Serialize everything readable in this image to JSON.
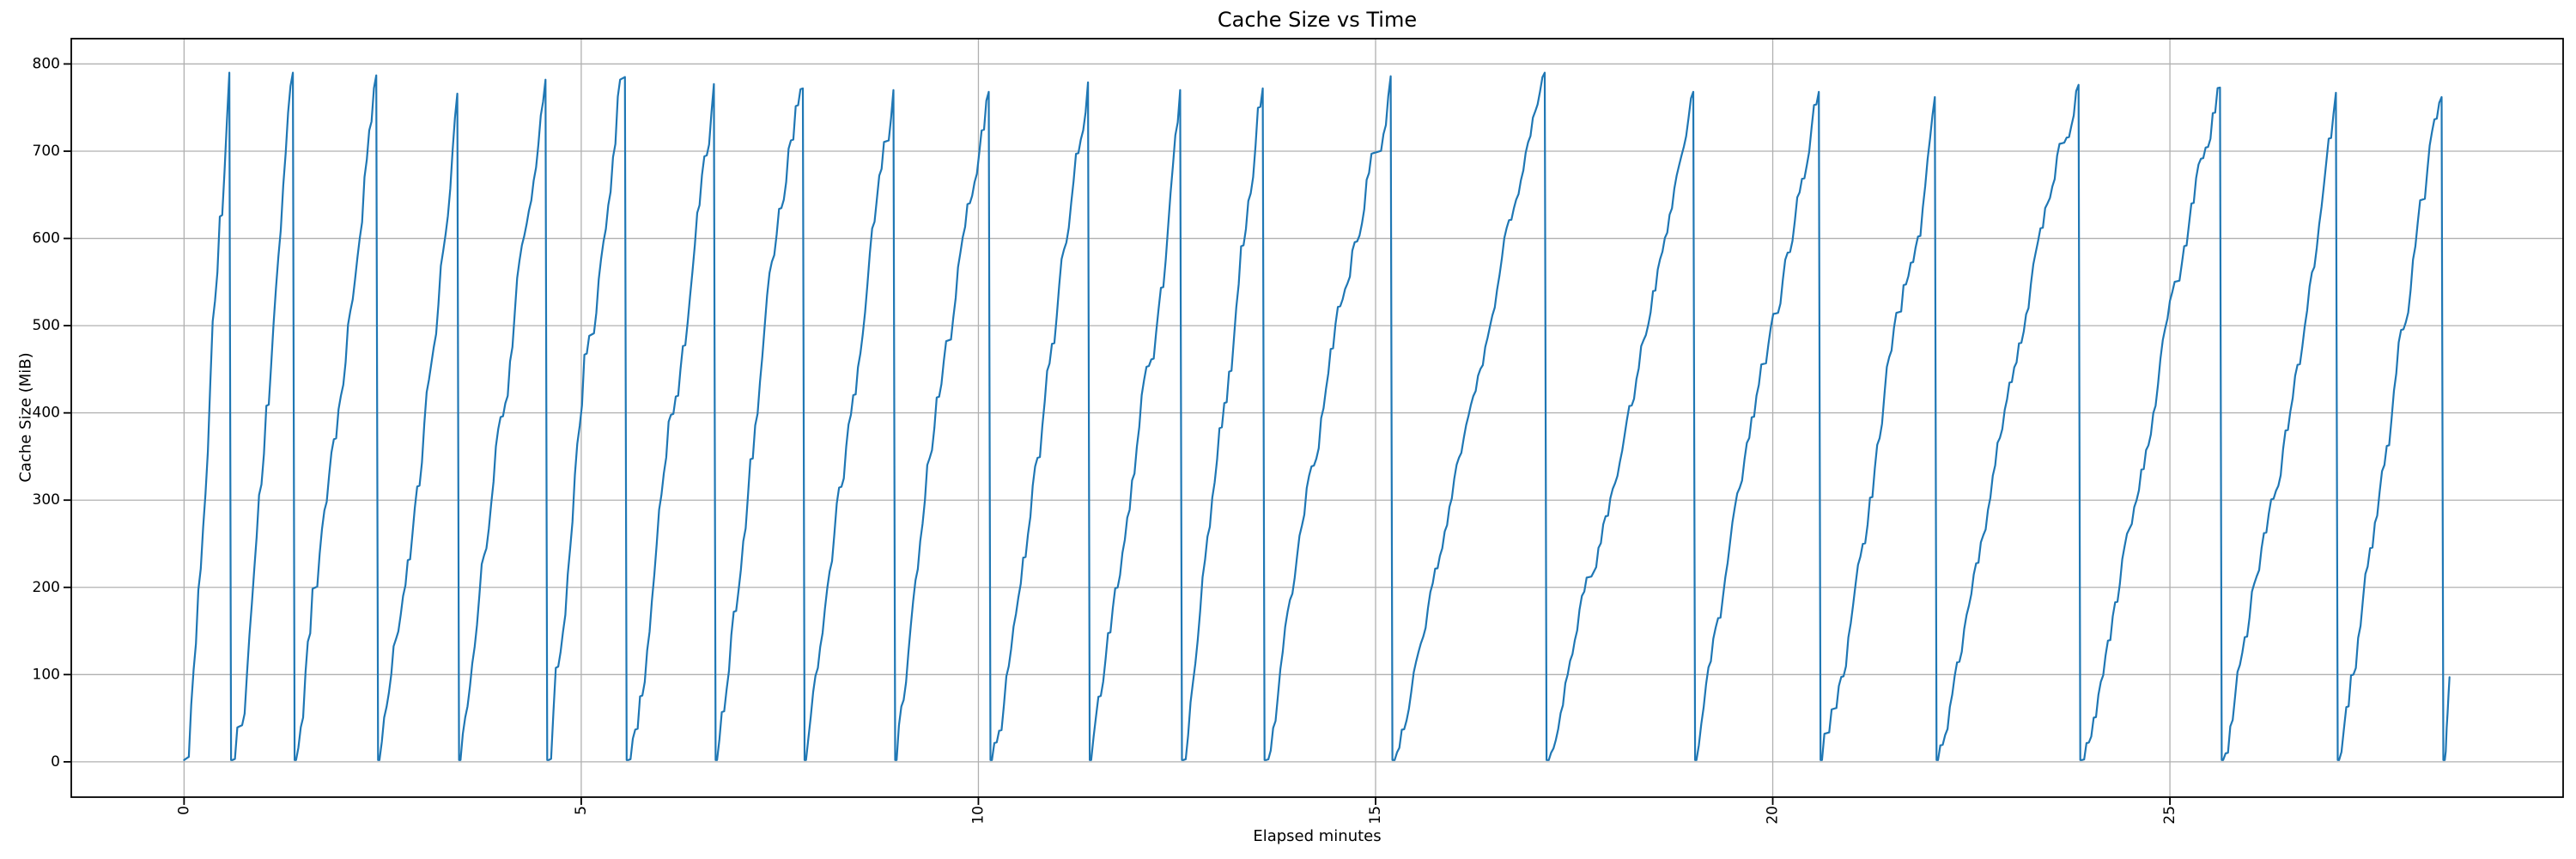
{
  "chart_data": {
    "type": "line",
    "title": "Cache Size vs Time",
    "xlabel": "Elapsed minutes",
    "ylabel": "Cache Size (MiB)",
    "xticks": [
      0,
      5,
      10,
      15,
      20,
      25
    ],
    "yticks": [
      0,
      100,
      200,
      300,
      400,
      500,
      600,
      700,
      800
    ],
    "xtick_rotation_deg": 90,
    "xlim": [
      -1.42,
      29.95
    ],
    "ylim": [
      -40.5,
      829.0
    ],
    "grid": true,
    "legend": false,
    "line_color": "#1f77b4",
    "grid_color": "#b0b0b0",
    "spine_color": "#000000",
    "background_color": "#ffffff",
    "baseline_mib": 2,
    "sample_step_min": 0.03,
    "series_description": "Sawtooth: cache fills from ~0 MiB to peak, then instantly drops to ~0",
    "teeth": [
      {
        "start": 0.0,
        "peak_time": 0.57,
        "peak": 790,
        "drop": true
      },
      {
        "start": 0.61,
        "peak_time": 1.37,
        "peak": 790,
        "drop": true
      },
      {
        "start": 1.41,
        "peak_time": 2.42,
        "peak": 787,
        "drop": true
      },
      {
        "start": 2.46,
        "peak_time": 3.44,
        "peak": 766,
        "drop": true
      },
      {
        "start": 3.48,
        "peak_time": 4.55,
        "peak": 782,
        "drop": true
      },
      {
        "start": 4.59,
        "peak_time": 5.55,
        "peak": 785,
        "drop": true
      },
      {
        "start": 5.59,
        "peak_time": 6.67,
        "peak": 777,
        "drop": true
      },
      {
        "start": 6.71,
        "peak_time": 7.79,
        "peak": 772,
        "drop": true
      },
      {
        "start": 7.83,
        "peak_time": 8.93,
        "peak": 770,
        "drop": true
      },
      {
        "start": 8.97,
        "peak_time": 10.13,
        "peak": 768,
        "drop": true
      },
      {
        "start": 10.17,
        "peak_time": 11.38,
        "peak": 779,
        "drop": true
      },
      {
        "start": 11.42,
        "peak_time": 12.54,
        "peak": 770,
        "drop": true
      },
      {
        "start": 12.58,
        "peak_time": 13.58,
        "peak": 772,
        "drop": true
      },
      {
        "start": 13.62,
        "peak_time": 15.19,
        "peak": 786,
        "drop": true
      },
      {
        "start": 15.24,
        "peak_time": 17.13,
        "peak": 790,
        "drop": true
      },
      {
        "start": 17.18,
        "peak_time": 19.0,
        "peak": 768,
        "drop": true
      },
      {
        "start": 19.04,
        "peak_time": 20.58,
        "peak": 768,
        "drop": true
      },
      {
        "start": 20.62,
        "peak_time": 22.04,
        "peak": 762,
        "drop": true
      },
      {
        "start": 22.08,
        "peak_time": 23.85,
        "peak": 776,
        "drop": true
      },
      {
        "start": 23.89,
        "peak_time": 25.63,
        "peak": 773,
        "drop": true
      },
      {
        "start": 25.67,
        "peak_time": 27.09,
        "peak": 767,
        "drop": true
      },
      {
        "start": 27.13,
        "peak_time": 28.42,
        "peak": 762,
        "drop": true
      },
      {
        "start": 28.46,
        "peak_time": 28.52,
        "peak": 97,
        "drop": false
      }
    ]
  }
}
